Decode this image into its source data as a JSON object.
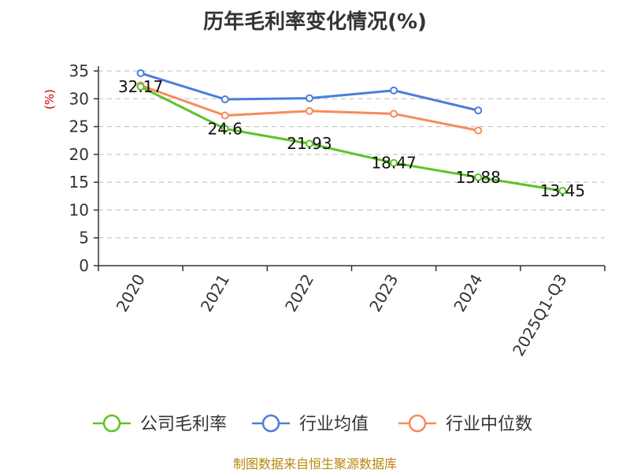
{
  "chart_data": {
    "type": "line",
    "title": "历年毛利率变化情况(%)",
    "ylabel": "(%)",
    "categories": [
      "2020",
      "2021",
      "2022",
      "2023",
      "2024",
      "2025Q1-Q3"
    ],
    "y_ticks": [
      "0",
      "5",
      "10",
      "15",
      "20",
      "25",
      "30",
      "35"
    ],
    "ylim": [
      0,
      35
    ],
    "grid": true,
    "legend_position": "bottom",
    "series": [
      {
        "name": "公司毛利率",
        "color": "#5bc428",
        "values": [
          32.17,
          24.6,
          21.93,
          18.47,
          15.88,
          13.45
        ],
        "labels": [
          "32.17",
          "24.6",
          "21.93",
          "18.47",
          "15.88",
          "13.45"
        ]
      },
      {
        "name": "行业均值",
        "color": "#4a7fd8",
        "values": [
          34.6,
          29.9,
          30.1,
          31.5,
          27.9,
          null
        ]
      },
      {
        "name": "行业中位数",
        "color": "#f58c5c",
        "values": [
          32.4,
          27.0,
          27.8,
          27.3,
          24.3,
          null
        ]
      }
    ]
  },
  "source": "制图数据来自恒生聚源数据库"
}
